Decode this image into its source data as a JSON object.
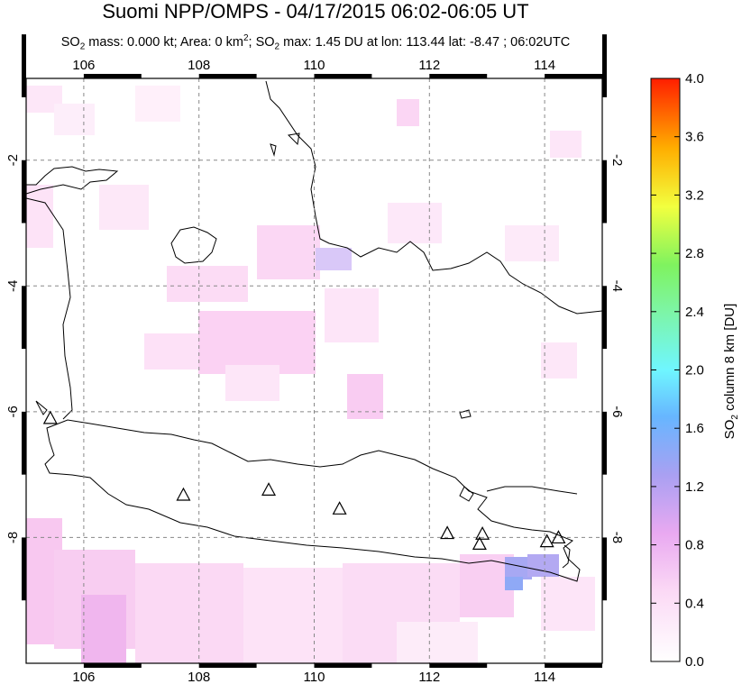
{
  "title": "Suomi NPP/OMPS - 04/17/2015 06:02-06:05 UT",
  "subtitle": {
    "part1": "SO",
    "part1_sub": "2",
    "part2": " mass: 0.000 kt; Area: 0 km",
    "part2_sup": "2",
    "part3": "; SO",
    "part3_sub": "2",
    "part4": " max: 1.45 DU at lon: 113.44 lat: -8.47 ; 06:02UTC"
  },
  "map": {
    "lon_range": [
      105,
      115
    ],
    "lat_range": [
      -10,
      -0.7
    ],
    "x_ticks": [
      "106",
      "108",
      "110",
      "112",
      "114"
    ],
    "y_ticks_left": [
      "-2",
      "-4",
      "-6",
      "-8"
    ],
    "y_ticks_right": [
      "-2",
      "-4",
      "-6",
      "-8"
    ],
    "grid": "dashed",
    "volcano_marker": "triangle"
  },
  "colorbar": {
    "label_main": "SO",
    "label_sub": "2",
    "label_rest": " column 8 km [DU]",
    "ticks": [
      "4.0",
      "3.6",
      "3.2",
      "2.8",
      "2.4",
      "2.0",
      "1.6",
      "1.2",
      "0.8",
      "0.4",
      "0.0"
    ],
    "range": [
      0,
      4.0
    ],
    "colors": [
      "#ffffff",
      "#f7c6f0",
      "#b79cf0",
      "#6fa3ff",
      "#6ff6ff",
      "#7ff37a",
      "#f5ff42",
      "#ffb000",
      "#ff2000"
    ]
  }
}
